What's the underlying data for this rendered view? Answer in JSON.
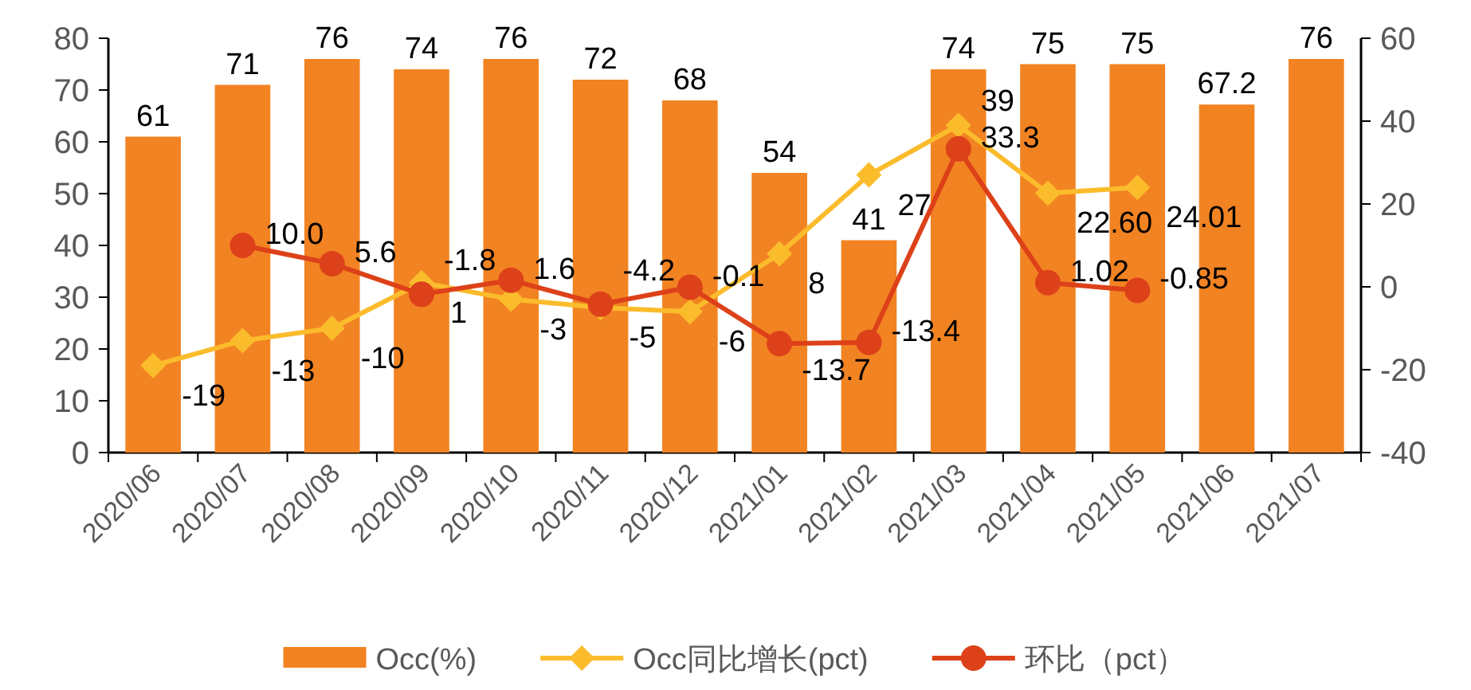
{
  "chart_data": {
    "type": "bar",
    "categories": [
      "2020/06",
      "2020/07",
      "2020/08",
      "2020/09",
      "2020/10",
      "2020/11",
      "2020/12",
      "2021/01",
      "2021/02",
      "2021/03",
      "2021/04",
      "2021/05",
      "2021/06",
      "2021/07"
    ],
    "series": [
      {
        "name": "Occ(%)",
        "type": "bar",
        "color": "#f28322",
        "values": [
          61,
          71,
          76,
          74,
          76,
          72,
          68,
          54,
          41,
          74,
          75,
          75,
          67.2,
          76
        ],
        "value_labels": [
          "61",
          "71",
          "76",
          "74",
          "76",
          "72",
          "68",
          "54",
          "41",
          "74",
          "75",
          "75",
          "67.2",
          "76"
        ]
      },
      {
        "name": "Occ同比增长(pct)",
        "type": "line",
        "axis": "y2",
        "color": "#fbbc2c",
        "marker": "diamond",
        "values": [
          -19,
          -13,
          -10,
          1,
          -3,
          -5,
          -6,
          8,
          27,
          39,
          22.6,
          24.01,
          null,
          null
        ],
        "value_labels": [
          "-19",
          "-13",
          "-10",
          "1",
          "-3",
          "-5",
          "-6",
          "8",
          "27",
          "39",
          "22.60",
          "24.01",
          null,
          null
        ]
      },
      {
        "name": "环比（pct）",
        "type": "line",
        "axis": "y2",
        "color": "#dd4119",
        "marker": "circle",
        "values": [
          null,
          10.0,
          5.6,
          -1.8,
          1.6,
          -4.2,
          -0.1,
          -13.7,
          -13.4,
          33.3,
          1.02,
          -0.85,
          null,
          null
        ],
        "value_labels": [
          null,
          "10.0",
          "5.6",
          "-1.8",
          "1.6",
          "-4.2",
          "-0.1",
          "-13.7",
          "-13.4",
          "33.3",
          "1.02",
          "-0.85",
          null,
          null
        ]
      }
    ],
    "ylim": [
      0,
      80
    ],
    "yticks": [
      0,
      10,
      20,
      30,
      40,
      50,
      60,
      70,
      80
    ],
    "y2lim": [
      -40,
      60
    ],
    "y2ticks": [
      -40,
      -20,
      0,
      20,
      40,
      60
    ],
    "legend": "bottom"
  }
}
